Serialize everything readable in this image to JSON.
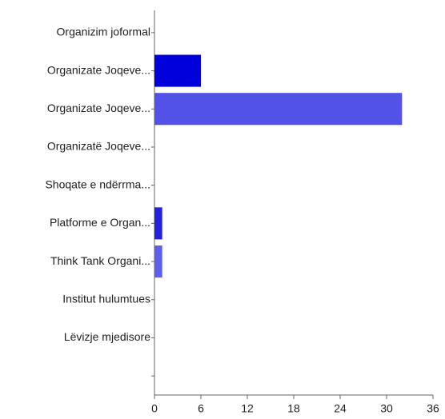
{
  "chart_data": {
    "type": "bar",
    "orientation": "horizontal",
    "categories": [
      "Organizim joformal",
      "Organizate Joqeve...",
      "Organizate Joqeve...",
      "Organizatë Joqeve...",
      "Shoqate e ndërrma...",
      "Platforme e Organ...",
      "Think Tank Organi...",
      "Institut hulumtues",
      "Lëvizje mjedisore",
      null
    ],
    "values": [
      0,
      6,
      32,
      0,
      0,
      1,
      1,
      0,
      0,
      0
    ],
    "colors": [
      "#0000dd",
      "#0000dd",
      "#5252e8",
      "#0000dd",
      "#0000dd",
      "#2222dd",
      "#5f5fee",
      "#0000dd",
      "#0000dd",
      "#0000dd"
    ],
    "xlim": [
      0,
      36
    ],
    "xticks": [
      0,
      6,
      12,
      18,
      24,
      30,
      36
    ],
    "grid": false
  }
}
